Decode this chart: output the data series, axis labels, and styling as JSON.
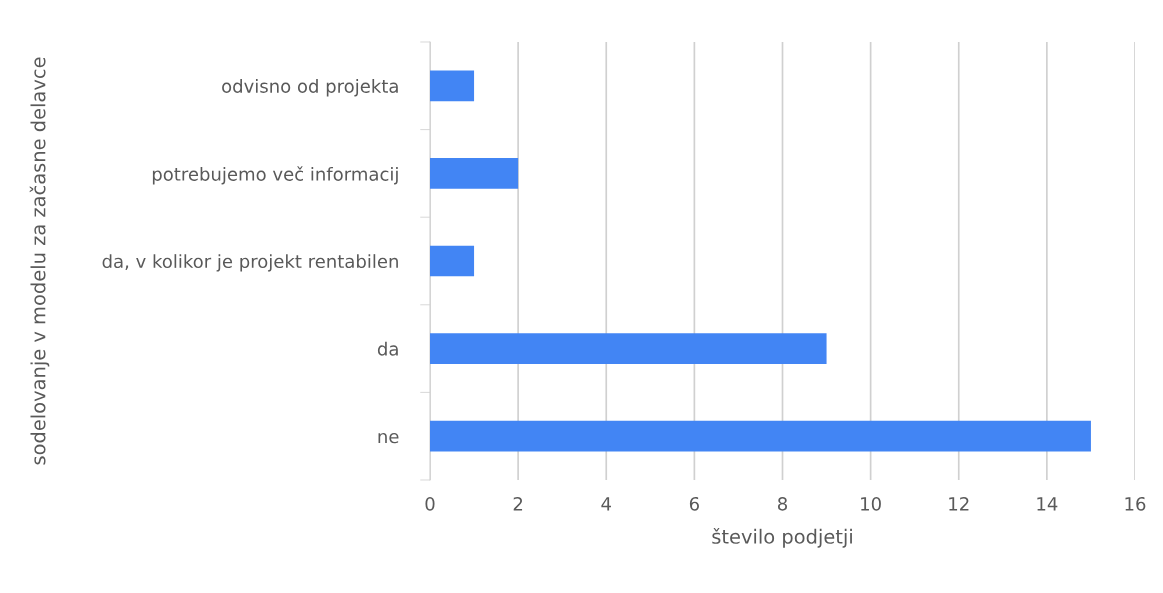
{
  "chart_data": {
    "type": "bar",
    "orientation": "horizontal",
    "categories": [
      "odvisno od projekta",
      "potrebujemo več informacij",
      "da, v kolikor je projekt rentabilen",
      "da",
      "ne"
    ],
    "values": [
      1,
      2,
      1,
      9,
      15
    ],
    "color": "#4285f4",
    "xlabel": "število podjetji",
    "ylabel": "sodelovanje v modelu za začasne delavce",
    "xlim": [
      0,
      16
    ],
    "xticks": [
      0,
      2,
      4,
      6,
      8,
      10,
      12,
      14,
      16
    ],
    "grid": "x",
    "legend": false
  }
}
